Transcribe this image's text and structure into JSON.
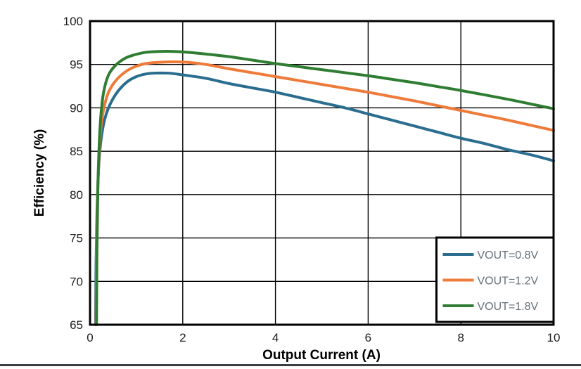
{
  "chart_data": {
    "type": "line",
    "title": "",
    "xlabel": "Output Current (A)",
    "ylabel": "Efficiency (%)",
    "xlim": [
      0,
      10
    ],
    "ylim": [
      65,
      100
    ],
    "xticks": [
      0,
      2,
      4,
      6,
      8,
      10
    ],
    "yticks": [
      65,
      70,
      75,
      80,
      85,
      90,
      95,
      100
    ],
    "grid": true,
    "legend_position": "bottom-right",
    "series": [
      {
        "name": "VOUT=0.8V",
        "color": "#2a6d8e",
        "points": [
          [
            0.12,
            65
          ],
          [
            0.13,
            72
          ],
          [
            0.15,
            78
          ],
          [
            0.18,
            82.5
          ],
          [
            0.22,
            85.5
          ],
          [
            0.28,
            87.8
          ],
          [
            0.35,
            89.3
          ],
          [
            0.45,
            90.6
          ],
          [
            0.6,
            91.9
          ],
          [
            0.8,
            93.0
          ],
          [
            1.0,
            93.6
          ],
          [
            1.2,
            93.9
          ],
          [
            1.4,
            94.0
          ],
          [
            1.7,
            94.0
          ],
          [
            2.0,
            93.8
          ],
          [
            2.5,
            93.4
          ],
          [
            3.0,
            92.8
          ],
          [
            3.5,
            92.3
          ],
          [
            4.0,
            91.8
          ],
          [
            4.5,
            91.2
          ],
          [
            5.0,
            90.6
          ],
          [
            5.5,
            90.0
          ],
          [
            6.0,
            89.3
          ],
          [
            6.5,
            88.6
          ],
          [
            7.0,
            87.9
          ],
          [
            7.5,
            87.2
          ],
          [
            8.0,
            86.5
          ],
          [
            8.5,
            85.9
          ],
          [
            9.0,
            85.2
          ],
          [
            9.5,
            84.6
          ],
          [
            10,
            83.9
          ]
        ]
      },
      {
        "name": "VOUT=1.2V",
        "color": "#ee7b3a",
        "points": [
          [
            0.13,
            65
          ],
          [
            0.14,
            73
          ],
          [
            0.16,
            79
          ],
          [
            0.19,
            84
          ],
          [
            0.23,
            87.5
          ],
          [
            0.3,
            90
          ],
          [
            0.4,
            91.8
          ],
          [
            0.55,
            93.1
          ],
          [
            0.75,
            94.1
          ],
          [
            0.95,
            94.7
          ],
          [
            1.2,
            95.1
          ],
          [
            1.5,
            95.25
          ],
          [
            1.8,
            95.3
          ],
          [
            2.1,
            95.25
          ],
          [
            2.5,
            95.0
          ],
          [
            3.0,
            94.5
          ],
          [
            3.5,
            94.05
          ],
          [
            4.0,
            93.6
          ],
          [
            4.5,
            93.15
          ],
          [
            5.0,
            92.7
          ],
          [
            5.5,
            92.25
          ],
          [
            6.0,
            91.8
          ],
          [
            6.5,
            91.3
          ],
          [
            7.0,
            90.8
          ],
          [
            7.5,
            90.25
          ],
          [
            8.0,
            89.7
          ],
          [
            8.5,
            89.15
          ],
          [
            9.0,
            88.6
          ],
          [
            9.5,
            88.0
          ],
          [
            10,
            87.4
          ]
        ]
      },
      {
        "name": "VOUT=1.8V",
        "color": "#2f7d32",
        "points": [
          [
            0.14,
            65
          ],
          [
            0.15,
            74
          ],
          [
            0.17,
            81
          ],
          [
            0.2,
            86
          ],
          [
            0.24,
            89.5
          ],
          [
            0.3,
            92
          ],
          [
            0.4,
            93.8
          ],
          [
            0.55,
            94.9
          ],
          [
            0.75,
            95.7
          ],
          [
            0.95,
            96.1
          ],
          [
            1.2,
            96.4
          ],
          [
            1.5,
            96.5
          ],
          [
            1.8,
            96.5
          ],
          [
            2.1,
            96.4
          ],
          [
            2.5,
            96.2
          ],
          [
            3.0,
            95.9
          ],
          [
            3.5,
            95.5
          ],
          [
            4.0,
            95.1
          ],
          [
            4.5,
            94.75
          ],
          [
            5.0,
            94.4
          ],
          [
            5.5,
            94.05
          ],
          [
            6.0,
            93.7
          ],
          [
            6.5,
            93.3
          ],
          [
            7.0,
            92.9
          ],
          [
            7.5,
            92.45
          ],
          [
            8.0,
            92.0
          ],
          [
            9.0,
            91.0
          ],
          [
            9.5,
            90.45
          ],
          [
            10,
            89.9
          ]
        ]
      }
    ],
    "colors": {
      "background": "#ffffff",
      "grid_color": "#000000",
      "plot_border_color": "#000000",
      "tick_label_color": "#1c1c1c",
      "axis_title_color": "#000000",
      "legend_text_color": "#67717a",
      "legend_border_color": "#000000",
      "legend_background": "#ffffff",
      "bottom_divider_color": "#3a3f44"
    }
  }
}
